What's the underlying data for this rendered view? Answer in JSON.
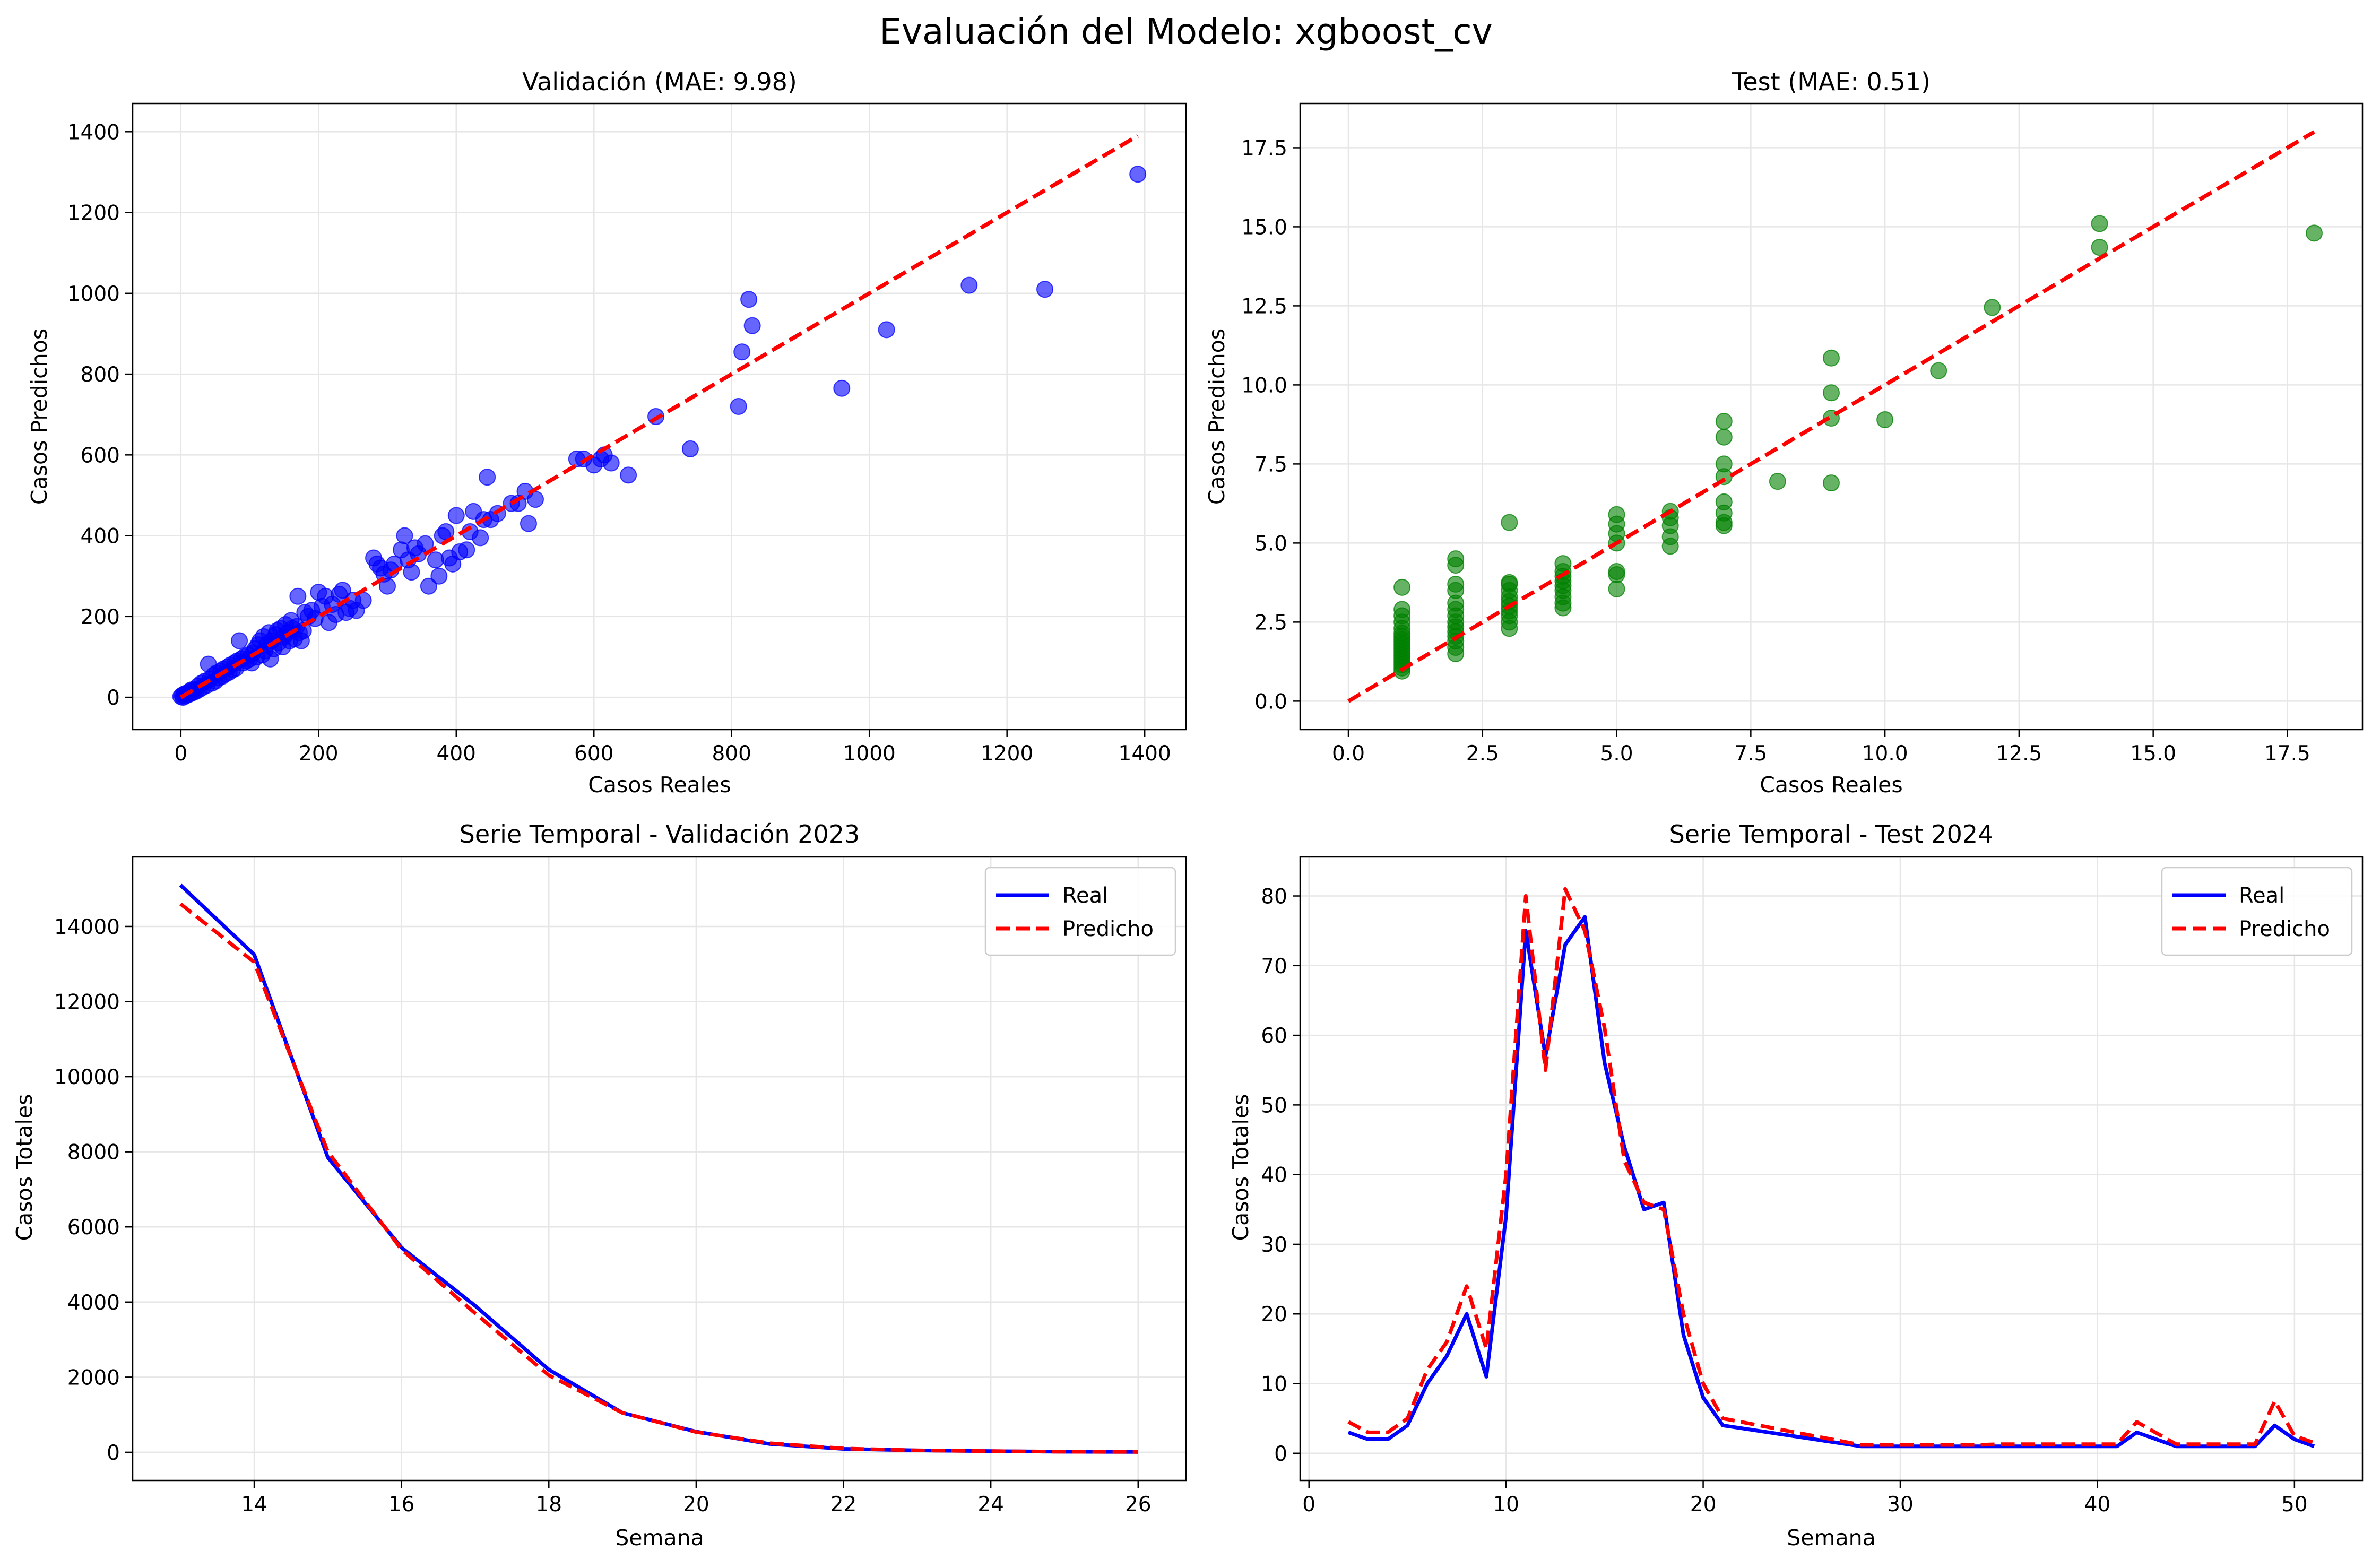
{
  "suptitle": "Evaluación del Modelo: xgboost_cv",
  "colors": {
    "real": "#0000ff",
    "pred": "#ff0000",
    "val_pts": "#0000ff",
    "test_pts": "#008000",
    "grid": "#e6e6e6"
  },
  "chart_data": [
    {
      "id": "val_scatter",
      "type": "scatter",
      "title": "Validación (MAE: 9.98)",
      "xlabel": "Casos Reales",
      "ylabel": "Casos Predichos",
      "xlim": [
        -70,
        1460
      ],
      "ylim": [
        -80,
        1470
      ],
      "xticks": [
        0,
        200,
        400,
        600,
        800,
        1000,
        1200,
        1400
      ],
      "yticks": [
        0,
        200,
        400,
        600,
        800,
        1000,
        1200,
        1400
      ],
      "grid": true,
      "reference_line": {
        "from": [
          0,
          0
        ],
        "to": [
          1390,
          1390
        ]
      },
      "points": [
        [
          0,
          2
        ],
        [
          2,
          5
        ],
        [
          3,
          0
        ],
        [
          5,
          8
        ],
        [
          6,
          3
        ],
        [
          8,
          10
        ],
        [
          10,
          6
        ],
        [
          12,
          14
        ],
        [
          14,
          9
        ],
        [
          15,
          18
        ],
        [
          18,
          12
        ],
        [
          20,
          20
        ],
        [
          22,
          15
        ],
        [
          25,
          28
        ],
        [
          27,
          20
        ],
        [
          30,
          35
        ],
        [
          32,
          25
        ],
        [
          35,
          40
        ],
        [
          38,
          30
        ],
        [
          40,
          82
        ],
        [
          42,
          45
        ],
        [
          45,
          35
        ],
        [
          48,
          55
        ],
        [
          50,
          40
        ],
        [
          52,
          60
        ],
        [
          55,
          48
        ],
        [
          58,
          65
        ],
        [
          60,
          52
        ],
        [
          62,
          70
        ],
        [
          65,
          58
        ],
        [
          68,
          75
        ],
        [
          70,
          62
        ],
        [
          72,
          80
        ],
        [
          75,
          68
        ],
        [
          78,
          85
        ],
        [
          80,
          72
        ],
        [
          82,
          90
        ],
        [
          85,
          140
        ],
        [
          88,
          95
        ],
        [
          90,
          85
        ],
        [
          92,
          100
        ],
        [
          95,
          90
        ],
        [
          98,
          105
        ],
        [
          100,
          95
        ],
        [
          103,
          85
        ],
        [
          105,
          110
        ],
        [
          108,
          120
        ],
        [
          110,
          100
        ],
        [
          112,
          130
        ],
        [
          115,
          140
        ],
        [
          118,
          105
        ],
        [
          120,
          150
        ],
        [
          122,
          115
        ],
        [
          125,
          130
        ],
        [
          128,
          160
        ],
        [
          130,
          95
        ],
        [
          132,
          140
        ],
        [
          135,
          120
        ],
        [
          138,
          155
        ],
        [
          140,
          165
        ],
        [
          142,
          135
        ],
        [
          145,
          170
        ],
        [
          148,
          125
        ],
        [
          150,
          150
        ],
        [
          152,
          180
        ],
        [
          155,
          160
        ],
        [
          158,
          140
        ],
        [
          160,
          190
        ],
        [
          162,
          170
        ],
        [
          165,
          145
        ],
        [
          168,
          175
        ],
        [
          170,
          250
        ],
        [
          172,
          160
        ],
        [
          175,
          140
        ],
        [
          178,
          165
        ],
        [
          180,
          210
        ],
        [
          185,
          200
        ],
        [
          190,
          215
        ],
        [
          195,
          195
        ],
        [
          200,
          260
        ],
        [
          205,
          225
        ],
        [
          210,
          250
        ],
        [
          215,
          185
        ],
        [
          220,
          230
        ],
        [
          225,
          205
        ],
        [
          230,
          255
        ],
        [
          235,
          265
        ],
        [
          240,
          210
        ],
        [
          245,
          220
        ],
        [
          250,
          240
        ],
        [
          255,
          215
        ],
        [
          265,
          240
        ],
        [
          280,
          345
        ],
        [
          285,
          330
        ],
        [
          290,
          320
        ],
        [
          295,
          305
        ],
        [
          300,
          275
        ],
        [
          305,
          315
        ],
        [
          310,
          330
        ],
        [
          320,
          365
        ],
        [
          325,
          400
        ],
        [
          330,
          340
        ],
        [
          335,
          310
        ],
        [
          340,
          370
        ],
        [
          345,
          355
        ],
        [
          355,
          380
        ],
        [
          360,
          275
        ],
        [
          370,
          340
        ],
        [
          375,
          300
        ],
        [
          380,
          400
        ],
        [
          385,
          410
        ],
        [
          390,
          345
        ],
        [
          395,
          330
        ],
        [
          400,
          450
        ],
        [
          405,
          360
        ],
        [
          415,
          365
        ],
        [
          420,
          410
        ],
        [
          425,
          460
        ],
        [
          435,
          395
        ],
        [
          440,
          440
        ],
        [
          445,
          545
        ],
        [
          450,
          440
        ],
        [
          460,
          455
        ],
        [
          480,
          480
        ],
        [
          490,
          480
        ],
        [
          500,
          510
        ],
        [
          505,
          430
        ],
        [
          515,
          490
        ],
        [
          575,
          590
        ],
        [
          585,
          590
        ],
        [
          600,
          575
        ],
        [
          610,
          590
        ],
        [
          615,
          600
        ],
        [
          625,
          580
        ],
        [
          650,
          550
        ],
        [
          690,
          695
        ],
        [
          740,
          615
        ],
        [
          810,
          720
        ],
        [
          815,
          855
        ],
        [
          825,
          985
        ],
        [
          830,
          920
        ],
        [
          960,
          765
        ],
        [
          1025,
          910
        ],
        [
          1145,
          1020
        ],
        [
          1255,
          1010
        ],
        [
          1390,
          1295
        ]
      ]
    },
    {
      "id": "test_scatter",
      "type": "scatter",
      "title": "Test (MAE: 0.51)",
      "xlabel": "Casos Reales",
      "ylabel": "Casos Predichos",
      "xlim": [
        -0.9,
        18.9
      ],
      "ylim": [
        -0.9,
        18.9
      ],
      "xticks": [
        0.0,
        2.5,
        5.0,
        7.5,
        10.0,
        12.5,
        15.0,
        17.5
      ],
      "yticks": [
        0.0,
        2.5,
        5.0,
        7.5,
        10.0,
        12.5,
        15.0,
        17.5
      ],
      "grid": true,
      "reference_line": {
        "from": [
          0,
          0
        ],
        "to": [
          18,
          18
        ]
      },
      "points": [
        [
          1,
          0.95
        ],
        [
          1,
          1.05
        ],
        [
          1,
          1.15
        ],
        [
          1,
          1.25
        ],
        [
          1,
          1.35
        ],
        [
          1,
          1.45
        ],
        [
          1,
          1.55
        ],
        [
          1,
          1.65
        ],
        [
          1,
          1.75
        ],
        [
          1,
          1.85
        ],
        [
          1,
          1.95
        ],
        [
          1,
          2.05
        ],
        [
          1,
          2.15
        ],
        [
          1,
          2.3
        ],
        [
          1,
          2.5
        ],
        [
          1,
          2.7
        ],
        [
          1,
          2.9
        ],
        [
          1,
          3.6
        ],
        [
          2,
          1.5
        ],
        [
          2,
          1.7
        ],
        [
          2,
          1.9
        ],
        [
          2,
          2.05
        ],
        [
          2,
          2.2
        ],
        [
          2,
          2.35
        ],
        [
          2,
          2.5
        ],
        [
          2,
          2.7
        ],
        [
          2,
          2.9
        ],
        [
          2,
          3.1
        ],
        [
          2,
          3.5
        ],
        [
          2,
          3.7
        ],
        [
          2,
          4.3
        ],
        [
          2,
          4.5
        ],
        [
          3,
          2.3
        ],
        [
          3,
          2.5
        ],
        [
          3,
          2.7
        ],
        [
          3,
          2.85
        ],
        [
          3,
          3.0
        ],
        [
          3,
          3.15
        ],
        [
          3,
          3.3
        ],
        [
          3,
          3.5
        ],
        [
          3,
          3.7
        ],
        [
          3,
          3.75
        ],
        [
          3,
          5.65
        ],
        [
          4,
          2.95
        ],
        [
          4,
          3.1
        ],
        [
          4,
          3.3
        ],
        [
          4,
          3.5
        ],
        [
          4,
          3.65
        ],
        [
          4,
          3.8
        ],
        [
          4,
          3.95
        ],
        [
          4,
          4.1
        ],
        [
          4,
          4.35
        ],
        [
          5,
          3.55
        ],
        [
          5,
          4.0
        ],
        [
          5,
          4.1
        ],
        [
          5,
          5.0
        ],
        [
          5,
          5.3
        ],
        [
          5,
          5.6
        ],
        [
          5,
          5.9
        ],
        [
          6,
          4.9
        ],
        [
          6,
          5.2
        ],
        [
          6,
          5.55
        ],
        [
          6,
          5.8
        ],
        [
          6,
          6.0
        ],
        [
          7,
          5.55
        ],
        [
          7,
          5.65
        ],
        [
          7,
          5.95
        ],
        [
          7,
          6.3
        ],
        [
          7,
          7.1
        ],
        [
          7,
          7.5
        ],
        [
          7,
          8.35
        ],
        [
          7,
          8.85
        ],
        [
          8,
          6.95
        ],
        [
          9,
          6.9
        ],
        [
          9,
          8.95
        ],
        [
          9,
          9.75
        ],
        [
          9,
          10.85
        ],
        [
          10,
          8.9
        ],
        [
          11,
          10.45
        ],
        [
          12,
          12.45
        ],
        [
          14,
          14.35
        ],
        [
          14,
          15.1
        ],
        [
          18,
          14.8
        ]
      ]
    },
    {
      "id": "val_series",
      "type": "line",
      "title": "Serie Temporal - Validación 2023",
      "xlabel": "Semana",
      "ylabel": "Casos Totales",
      "xlim": [
        12.35,
        26.65
      ],
      "ylim": [
        -750,
        15850
      ],
      "xticks": [
        14,
        16,
        18,
        20,
        22,
        24,
        26
      ],
      "yticks": [
        0,
        2000,
        4000,
        6000,
        8000,
        10000,
        12000,
        14000
      ],
      "grid": true,
      "legend": "top-right",
      "x": [
        13,
        14,
        15,
        16,
        17,
        18,
        19,
        20,
        21,
        22,
        23,
        24,
        25,
        26
      ],
      "series": [
        {
          "name": "Real",
          "values": [
            15100,
            13250,
            7850,
            5450,
            3900,
            2200,
            1050,
            550,
            220,
            90,
            50,
            30,
            15,
            10
          ]
        },
        {
          "name": "Predicho",
          "values": [
            14600,
            13050,
            8000,
            5400,
            3700,
            2050,
            1050,
            540,
            240,
            100,
            50,
            30,
            15,
            10
          ]
        }
      ]
    },
    {
      "id": "test_series",
      "type": "line",
      "title": "Serie Temporal - Test 2024",
      "xlabel": "Semana",
      "ylabel": "Casos Totales",
      "xlim": [
        -0.45,
        53.45
      ],
      "ylim": [
        -3.9,
        85.6
      ],
      "xticks": [
        0,
        10,
        20,
        30,
        40,
        50
      ],
      "yticks": [
        0,
        10,
        20,
        30,
        40,
        50,
        60,
        70,
        80
      ],
      "grid": true,
      "legend": "top-right",
      "x": [
        2,
        3,
        4,
        5,
        6,
        7,
        8,
        9,
        10,
        11,
        12,
        13,
        14,
        15,
        16,
        17,
        18,
        19,
        20,
        21,
        28,
        34,
        35,
        41,
        42,
        44,
        48,
        49,
        50,
        51
      ],
      "series": [
        {
          "name": "Real",
          "values": [
            3,
            2,
            2,
            4,
            10,
            14,
            20,
            11,
            34,
            75,
            57,
            73,
            77,
            56,
            44,
            35,
            36,
            17,
            8,
            4,
            1,
            1,
            1,
            1,
            3,
            1,
            1,
            4,
            2,
            1
          ]
        },
        {
          "name": "Predicho",
          "values": [
            4.5,
            3,
            3,
            5,
            12,
            16,
            24,
            15,
            40,
            80,
            55,
            81,
            75,
            61,
            42,
            36,
            35,
            20,
            10,
            5,
            1.2,
            1.2,
            1.3,
            1.3,
            4.5,
            1.3,
            1.3,
            7.5,
            2.5,
            1.5
          ]
        }
      ]
    }
  ]
}
